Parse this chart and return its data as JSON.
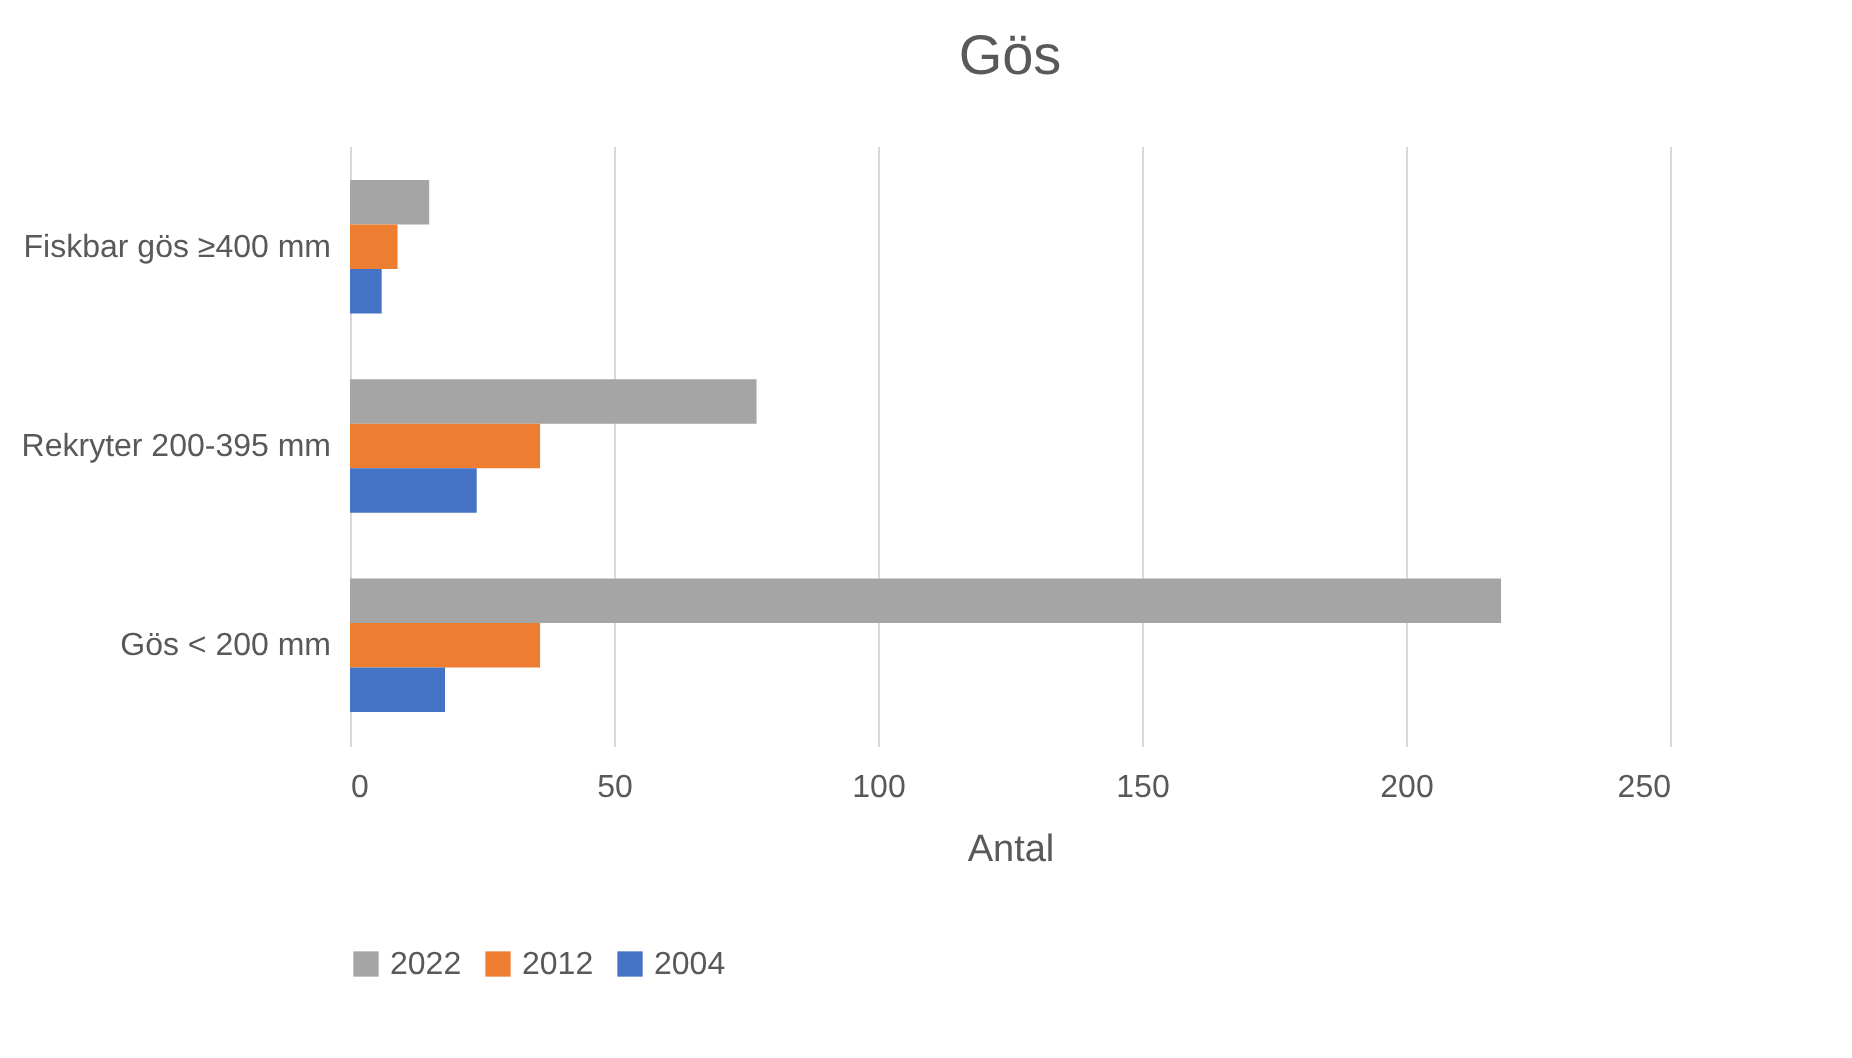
{
  "chart_data": {
    "type": "bar",
    "orientation": "horizontal",
    "title": "Gös",
    "xlabel": "Antal",
    "categories": [
      "Fiskbar gös ≥400 mm",
      "Rekryter 200-395 mm",
      "Gös < 200 mm"
    ],
    "series": [
      {
        "name": "2022",
        "color": "#a5a5a5",
        "values": [
          15,
          77,
          218
        ]
      },
      {
        "name": "2012",
        "color": "#ed7d31",
        "values": [
          9,
          36,
          36
        ]
      },
      {
        "name": "2004",
        "color": "#4472c4",
        "values": [
          6,
          24,
          18
        ]
      }
    ],
    "xlim": [
      0,
      250
    ],
    "xticks": [
      0,
      50,
      100,
      150,
      200,
      250
    ],
    "grid": "x",
    "legend": "bottom"
  }
}
